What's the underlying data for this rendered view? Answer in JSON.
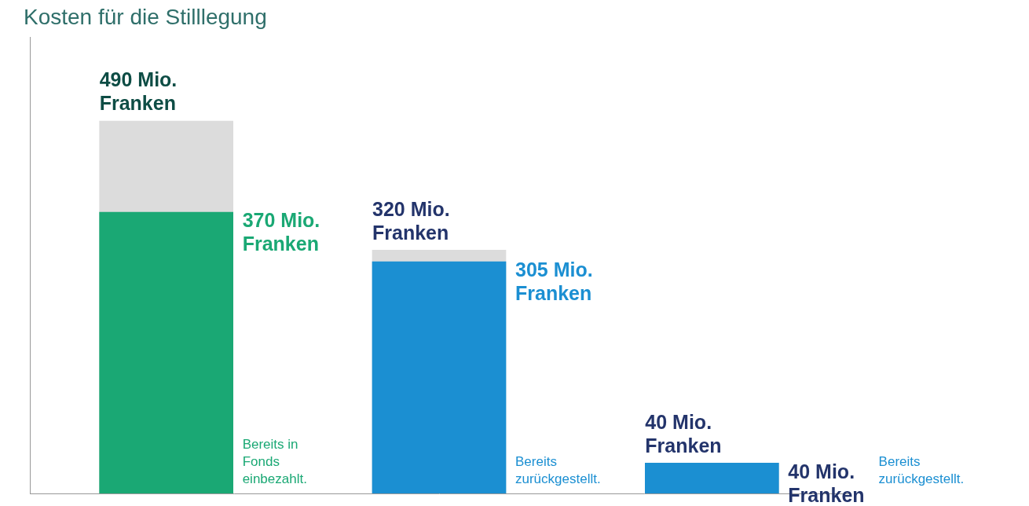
{
  "chart_data": {
    "type": "bar",
    "title": "Kosten für die Stilllegung",
    "categories": [
      null,
      null,
      null
    ],
    "series": [
      {
        "values": [
          490,
          320,
          40
        ],
        "value_labels": [
          "490 Mio. Franken",
          "320 Mio. Franken",
          "40 Mio. Franken"
        ],
        "color": "#dcdcdc"
      },
      {
        "values": [
          370,
          305,
          40
        ],
        "value_labels": [
          "370 Mio. Franken",
          "305 Mio. Franken",
          "40 Mio. Franken"
        ],
        "colors": [
          "#1aa874",
          "#1b8fd2",
          "#1b8fd2"
        ],
        "annotations": [
          "Bereits in Fonds einbezahlt.",
          "Bereits zurückgestellt.",
          "Bereits zurückgestellt."
        ]
      }
    ],
    "ylim": [
      0,
      600
    ],
    "tick_labels": false,
    "grid": false,
    "data_labels": true
  }
}
